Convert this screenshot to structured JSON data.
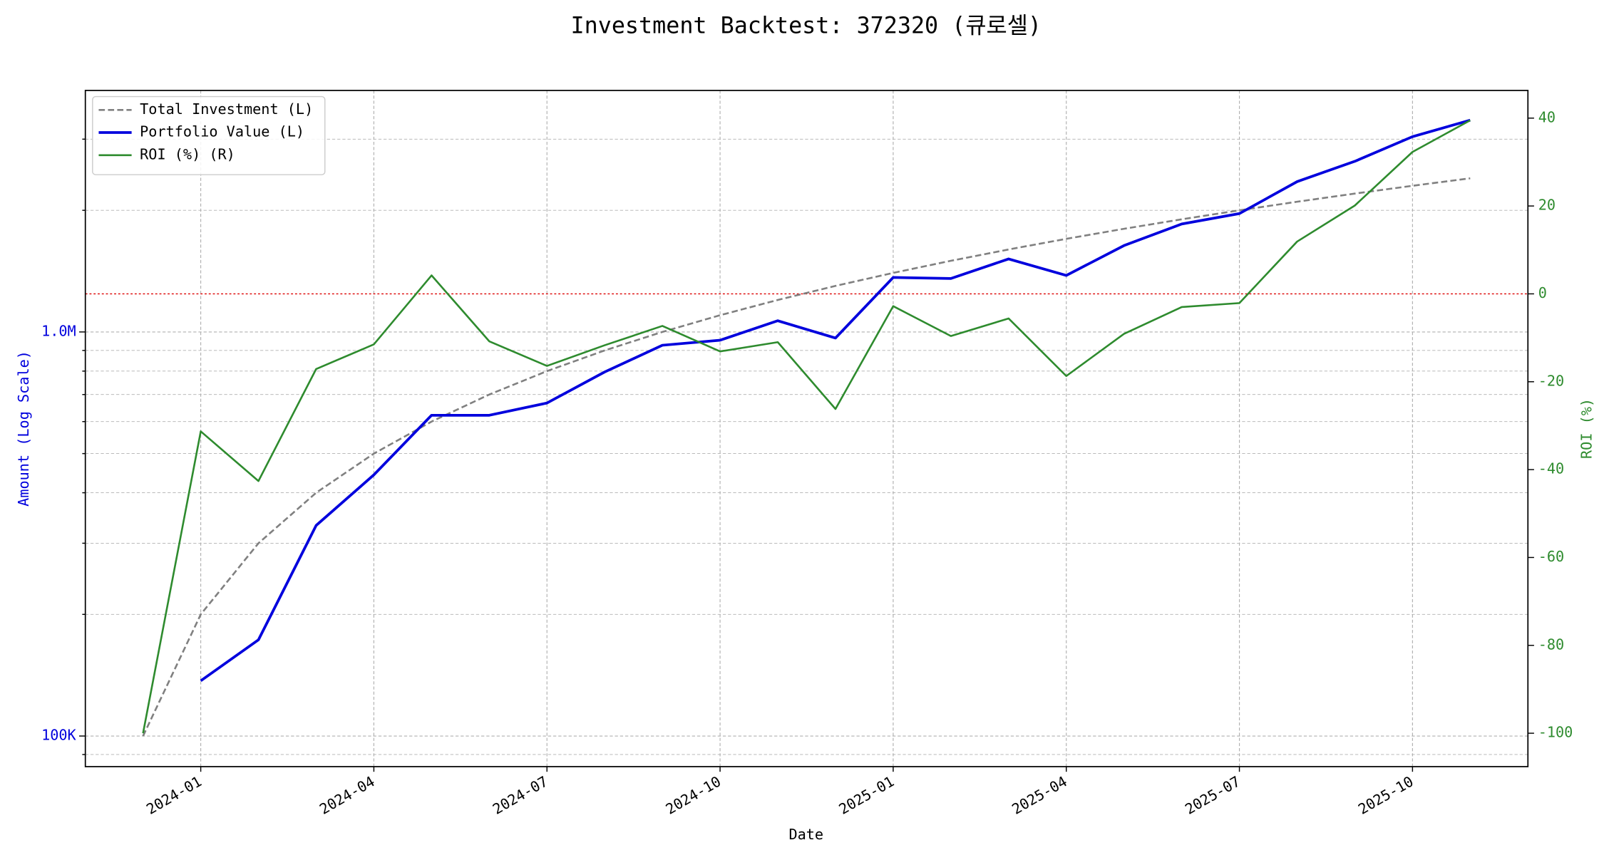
{
  "chart_data": {
    "type": "line",
    "title": "Investment Backtest: 372320 (큐로셀)",
    "x_label": "Date",
    "y_label": "Amount (Log Scale)",
    "y2_label": "ROI (%)",
    "x": [
      "2023-12",
      "2024-01",
      "2024-02",
      "2024-03",
      "2024-04",
      "2024-05",
      "2024-06",
      "2024-07",
      "2024-08",
      "2024-09",
      "2024-10",
      "2024-11",
      "2024-12",
      "2025-01",
      "2025-02",
      "2025-03",
      "2025-04",
      "2025-05",
      "2025-06",
      "2025-07",
      "2025-08",
      "2025-09",
      "2025-10",
      "2025-11"
    ],
    "series": [
      {
        "name": "Total Investment (L)",
        "color": "#808080",
        "dash": true,
        "width": 1.8,
        "axis": "y",
        "values": [
          100000,
          200000,
          300000,
          400000,
          500000,
          600000,
          700000,
          800000,
          900000,
          1000000,
          1100000,
          1200000,
          1300000,
          1400000,
          1500000,
          1600000,
          1700000,
          1800000,
          1900000,
          2000000,
          2100000,
          2200000,
          2300000,
          2400000
        ]
      },
      {
        "name": "Portfolio Value (L)",
        "color": "#0000dd",
        "dash": false,
        "width": 2.6,
        "axis": "y",
        "values": [
          null,
          137000,
          173000,
          332000,
          443000,
          622000,
          622000,
          667000,
          796000,
          927000,
          954000,
          1066000,
          966000,
          1364000,
          1356000,
          1516000,
          1380000,
          1636000,
          1850000,
          1963000,
          2355000,
          2644000,
          3043000,
          3343000
        ]
      },
      {
        "name": "ROI (%) (R)",
        "color": "#2e8b2e",
        "dash": false,
        "width": 1.8,
        "axis": "y2",
        "values": [
          -100,
          -31.3,
          -42.6,
          -17.1,
          -11.5,
          4.2,
          -10.8,
          -16.4,
          -11.7,
          -7.3,
          -13.1,
          -11.0,
          -26.2,
          -2.8,
          -9.6,
          -5.6,
          -18.7,
          -9.1,
          -3.0,
          -2.1,
          11.9,
          20.1,
          32.3,
          39.5
        ]
      }
    ],
    "xlim": [
      "2023-11",
      "2025-12"
    ],
    "xticks": [
      "2024-01",
      "2024-04",
      "2024-07",
      "2024-10",
      "2025-01",
      "2025-04",
      "2025-07",
      "2025-10"
    ],
    "ylim": [
      84000,
      3960000
    ],
    "log_y": true,
    "yticks": [
      {
        "value": 100000,
        "label": "100K"
      },
      {
        "value": 1000000,
        "label": "1.0M"
      }
    ],
    "yminorticks": [
      90000,
      200000,
      300000,
      400000,
      500000,
      600000,
      700000,
      800000,
      900000,
      2000000,
      3000000
    ],
    "y_color": "#0000dd",
    "y2lim": [
      -107.6,
      46.3
    ],
    "y2ticks": [
      40,
      20,
      0,
      -20,
      -40,
      -60,
      -80,
      -100
    ],
    "y2_color": "#2e8b2e",
    "hline": {
      "axis": "y2",
      "value": 0,
      "color": "#dd0000"
    },
    "grid": true,
    "legend": "upper left"
  }
}
